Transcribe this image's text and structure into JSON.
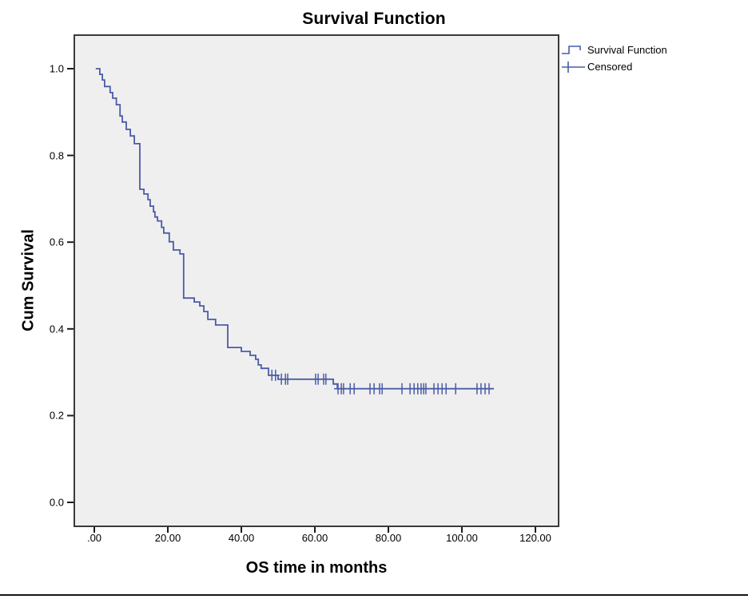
{
  "chart_data": {
    "type": "line",
    "subtype": "kaplan-meier-step",
    "title": "Survival Function",
    "xlabel": "OS time in months",
    "ylabel": "Cum Survival",
    "grid": false,
    "legend": {
      "position": "top-right",
      "items": [
        {
          "label": "Survival Function",
          "symbol": "step-line-icon"
        },
        {
          "label": "Censored",
          "symbol": "plus-icon"
        }
      ]
    },
    "x_axis": {
      "range": [
        0,
        120
      ],
      "ticks": [
        {
          "label": ".00",
          "value": 0
        },
        {
          "label": "20.00",
          "value": 20
        },
        {
          "label": "40.00",
          "value": 40
        },
        {
          "label": "60.00",
          "value": 60
        },
        {
          "label": "80.00",
          "value": 80
        },
        {
          "label": "100.00",
          "value": 100
        },
        {
          "label": "120.00",
          "value": 120
        }
      ]
    },
    "y_axis": {
      "range": [
        0,
        1
      ],
      "ticks": [
        {
          "label": "0.0",
          "value": 0.0
        },
        {
          "label": "0.2",
          "value": 0.2
        },
        {
          "label": "0.4",
          "value": 0.4
        },
        {
          "label": "0.6",
          "value": 0.6
        },
        {
          "label": "0.8",
          "value": 0.8
        },
        {
          "label": "1.0",
          "value": 1.0
        }
      ]
    },
    "style": {
      "line_color": "#4A5CA8",
      "plot_bg": "#EFEFEF",
      "frame_color": "#3A3A3A",
      "tick_color": "#1A1A1A",
      "text_color": "#000000"
    },
    "series": [
      {
        "name": "Survival Function",
        "end_time": 108.7,
        "steps": [
          [
            0.4,
            1.0
          ],
          [
            1.5,
            0.987
          ],
          [
            2.2,
            0.974
          ],
          [
            2.8,
            0.959
          ],
          [
            4.3,
            0.945
          ],
          [
            5.0,
            0.932
          ],
          [
            6.0,
            0.917
          ],
          [
            7.0,
            0.891
          ],
          [
            7.6,
            0.877
          ],
          [
            8.7,
            0.86
          ],
          [
            9.8,
            0.845
          ],
          [
            10.9,
            0.827
          ],
          [
            12.4,
            0.722
          ],
          [
            13.5,
            0.711
          ],
          [
            14.6,
            0.698
          ],
          [
            15.2,
            0.683
          ],
          [
            16.1,
            0.67
          ],
          [
            16.5,
            0.658
          ],
          [
            17.2,
            0.649
          ],
          [
            18.3,
            0.634
          ],
          [
            18.9,
            0.621
          ],
          [
            20.4,
            0.601
          ],
          [
            21.5,
            0.582
          ],
          [
            23.3,
            0.573
          ],
          [
            24.3,
            0.471
          ],
          [
            27.2,
            0.462
          ],
          [
            28.7,
            0.453
          ],
          [
            29.8,
            0.44
          ],
          [
            30.9,
            0.422
          ],
          [
            33.0,
            0.409
          ],
          [
            36.3,
            0.357
          ],
          [
            40.0,
            0.348
          ],
          [
            42.4,
            0.339
          ],
          [
            43.9,
            0.33
          ],
          [
            44.6,
            0.317
          ],
          [
            45.4,
            0.309
          ],
          [
            47.4,
            0.293
          ],
          [
            50.0,
            0.284
          ],
          [
            65.0,
            0.273
          ],
          [
            66.1,
            0.262
          ]
        ]
      }
    ],
    "censored": [
      [
        48.3,
        0.293
      ],
      [
        49.3,
        0.293
      ],
      [
        50.9,
        0.284
      ],
      [
        52.0,
        0.284
      ],
      [
        52.6,
        0.284
      ],
      [
        60.2,
        0.284
      ],
      [
        60.9,
        0.284
      ],
      [
        62.4,
        0.284
      ],
      [
        63.0,
        0.284
      ],
      [
        66.3,
        0.262
      ],
      [
        67.2,
        0.262
      ],
      [
        67.8,
        0.262
      ],
      [
        69.6,
        0.262
      ],
      [
        70.7,
        0.262
      ],
      [
        75.0,
        0.262
      ],
      [
        76.1,
        0.262
      ],
      [
        77.6,
        0.262
      ],
      [
        78.3,
        0.262
      ],
      [
        83.7,
        0.262
      ],
      [
        85.9,
        0.262
      ],
      [
        87.0,
        0.262
      ],
      [
        88.0,
        0.262
      ],
      [
        88.9,
        0.262
      ],
      [
        89.6,
        0.262
      ],
      [
        90.2,
        0.262
      ],
      [
        92.4,
        0.262
      ],
      [
        93.5,
        0.262
      ],
      [
        94.6,
        0.262
      ],
      [
        95.7,
        0.262
      ],
      [
        98.3,
        0.262
      ],
      [
        104.1,
        0.262
      ],
      [
        105.2,
        0.262
      ],
      [
        106.3,
        0.262
      ],
      [
        107.4,
        0.262
      ]
    ]
  }
}
